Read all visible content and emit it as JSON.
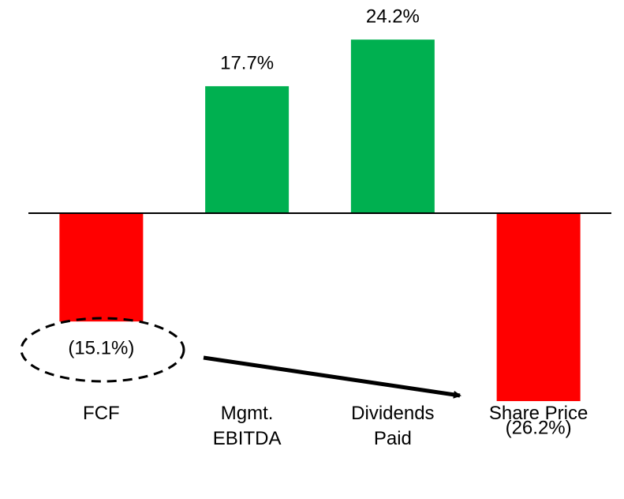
{
  "chart_data": {
    "type": "bar",
    "categories": [
      "FCF",
      "Mgmt.\nEBITDA",
      "Dividends\nPaid",
      "Share Price"
    ],
    "values": [
      -15.1,
      17.7,
      24.2,
      -26.2
    ],
    "value_labels": [
      "(15.1%)",
      "17.7%",
      "24.2%",
      "(26.2%)"
    ],
    "colors": [
      "#ff0000",
      "#00b050",
      "#00b050",
      "#ff0000"
    ],
    "ylim": [
      -29.5,
      29.5
    ]
  }
}
